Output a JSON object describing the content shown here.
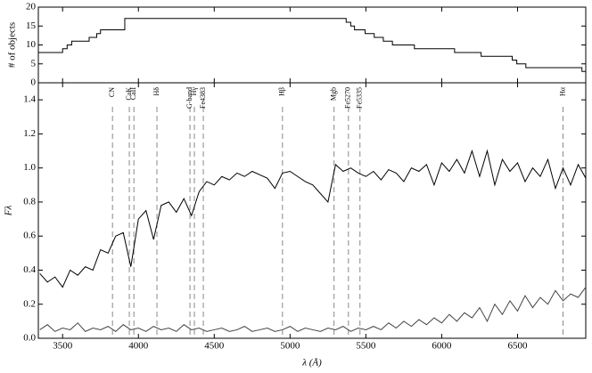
{
  "chart_data": [
    {
      "type": "step",
      "ylabel": "# of objects",
      "x": [
        3340,
        3500,
        3530,
        3560,
        3675,
        3725,
        3750,
        3910,
        5370,
        5400,
        5425,
        5495,
        5555,
        5615,
        5675,
        5820,
        6085,
        6260,
        6465,
        6495,
        6555,
        6925
      ],
      "values": [
        8,
        9,
        10,
        11,
        12,
        13,
        14,
        17,
        16,
        15,
        14,
        13,
        12,
        11,
        10,
        9,
        8,
        7,
        6,
        5,
        4,
        3
      ],
      "color": "#000000",
      "xlim": [
        3340,
        6950
      ],
      "xticks": [
        3500,
        4000,
        4500,
        5000,
        5500,
        6000,
        6500
      ],
      "ylim": [
        0,
        20
      ],
      "yticks": [
        0,
        5,
        10,
        15,
        20
      ]
    },
    {
      "type": "line",
      "xlabel": "λ (Å)",
      "ylabel": "Fλ",
      "x": [
        3350,
        3400,
        3450,
        3500,
        3550,
        3600,
        3650,
        3700,
        3750,
        3800,
        3850,
        3900,
        3950,
        4000,
        4050,
        4100,
        4150,
        4200,
        4250,
        4300,
        4350,
        4400,
        4450,
        4500,
        4550,
        4600,
        4650,
        4700,
        4750,
        4800,
        4850,
        4900,
        4950,
        5000,
        5050,
        5100,
        5150,
        5200,
        5250,
        5300,
        5350,
        5400,
        5450,
        5500,
        5550,
        5600,
        5650,
        5700,
        5750,
        5800,
        5850,
        5900,
        5950,
        6000,
        6050,
        6100,
        6150,
        6200,
        6250,
        6300,
        6350,
        6400,
        6450,
        6500,
        6550,
        6600,
        6650,
        6700,
        6750,
        6800,
        6850,
        6900,
        6950
      ],
      "series": [
        {
          "color": "#000000",
          "values": [
            0.38,
            0.33,
            0.36,
            0.3,
            0.4,
            0.37,
            0.42,
            0.4,
            0.52,
            0.5,
            0.6,
            0.62,
            0.42,
            0.7,
            0.75,
            0.58,
            0.78,
            0.8,
            0.74,
            0.82,
            0.72,
            0.86,
            0.92,
            0.9,
            0.95,
            0.93,
            0.97,
            0.95,
            0.98,
            0.96,
            0.94,
            0.88,
            0.97,
            0.98,
            0.95,
            0.92,
            0.9,
            0.85,
            0.8,
            1.02,
            0.98,
            1.0,
            0.97,
            0.95,
            0.98,
            0.93,
            0.99,
            0.97,
            0.92,
            1.0,
            0.98,
            1.02,
            0.9,
            1.03,
            0.98,
            1.05,
            0.97,
            1.1,
            0.95,
            1.1,
            0.9,
            1.05,
            0.98,
            1.03,
            0.92,
            1.0,
            0.95,
            1.05,
            0.88,
            1.0,
            0.9,
            1.02,
            0.94
          ]
        },
        {
          "color": "#444444",
          "values": [
            0.05,
            0.08,
            0.04,
            0.06,
            0.05,
            0.09,
            0.04,
            0.06,
            0.05,
            0.07,
            0.04,
            0.08,
            0.05,
            0.06,
            0.04,
            0.07,
            0.05,
            0.06,
            0.04,
            0.08,
            0.05,
            0.06,
            0.04,
            0.05,
            0.06,
            0.04,
            0.05,
            0.07,
            0.04,
            0.05,
            0.06,
            0.04,
            0.05,
            0.07,
            0.04,
            0.06,
            0.05,
            0.04,
            0.06,
            0.05,
            0.07,
            0.04,
            0.06,
            0.05,
            0.07,
            0.05,
            0.09,
            0.06,
            0.1,
            0.07,
            0.11,
            0.08,
            0.12,
            0.09,
            0.14,
            0.1,
            0.15,
            0.12,
            0.18,
            0.1,
            0.2,
            0.14,
            0.22,
            0.16,
            0.25,
            0.18,
            0.24,
            0.2,
            0.28,
            0.22,
            0.26,
            0.24,
            0.3
          ]
        }
      ],
      "lines": [
        {
          "label": "CN",
          "wavelength": 3829
        },
        {
          "label": "CaK",
          "wavelength": 3940
        },
        {
          "label": "CaII",
          "wavelength": 3970
        },
        {
          "label": "Hδ",
          "wavelength": 4122
        },
        {
          "label": "G-band",
          "wavelength": 4340
        },
        {
          "label": "Hγ",
          "wavelength": 4369
        },
        {
          "label": "Fe4383",
          "wavelength": 4428
        },
        {
          "label": "Hβ",
          "wavelength": 4950
        },
        {
          "label": "Mgb",
          "wavelength": 5290
        },
        {
          "label": "Fe5270",
          "wavelength": 5385
        },
        {
          "label": "Fe5335",
          "wavelength": 5461
        },
        {
          "label": "Hα",
          "wavelength": 6800
        }
      ],
      "xlim": [
        3340,
        6950
      ],
      "xticks": [
        3500,
        4000,
        4500,
        5000,
        5500,
        6000,
        6500
      ],
      "ylim": [
        0,
        1.5
      ],
      "yticks": [
        {
          "value": 0,
          "label": "0.0"
        },
        0.2,
        0.4,
        0.6,
        0.8,
        {
          "value": 1,
          "label": "1.0"
        },
        1.2,
        1.4
      ]
    }
  ]
}
